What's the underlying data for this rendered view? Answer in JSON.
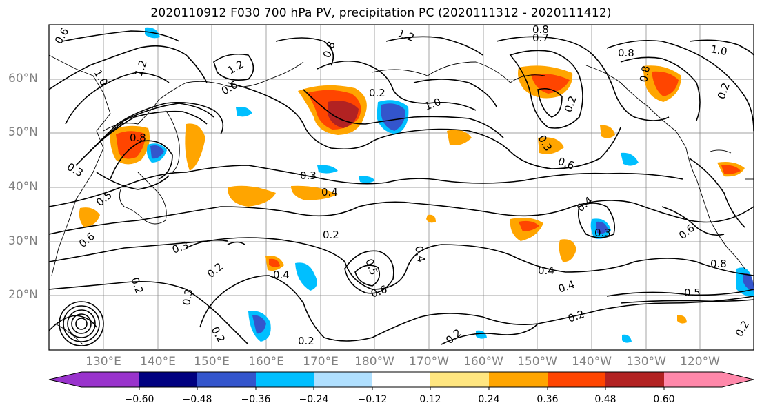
{
  "title": "2020110912 F030 700 hPa PV, precipitation PC (2020111312 - 2020111412)",
  "map": {
    "latitude_labels": [
      "60°N",
      "50°N",
      "40°N",
      "30°N",
      "20°N"
    ],
    "longitude_labels": [
      "130°E",
      "140°E",
      "150°E",
      "160°E",
      "170°E",
      "180°W",
      "170°W",
      "160°W",
      "150°W",
      "140°W",
      "130°W",
      "120°W"
    ],
    "contour_labels": [
      "0.6",
      "1.0",
      "1.2",
      "0.3",
      "0.4",
      "0.5",
      "0.2",
      "0.8",
      "0.7"
    ]
  },
  "colorbar": {
    "tick_labels": [
      "−0.60",
      "−0.48",
      "−0.36",
      "−0.24",
      "−0.12",
      "0.12",
      "0.24",
      "0.36",
      "0.48",
      "0.60"
    ],
    "colors": [
      "#9933cc",
      "#000080",
      "#3355cc",
      "#00bfff",
      "#b0e0ff",
      "#ffffff",
      "#ffe680",
      "#ffa500",
      "#ff4500",
      "#b22222",
      "#ff88aa"
    ]
  },
  "colors": {
    "positive_strong": "#b22222",
    "positive_mid": "#ff4500",
    "positive_weak": "#ffa500",
    "negative_weak": "#00bfff",
    "negative_mid": "#3355cc",
    "contour": "#000000",
    "grid": "#808080",
    "label_gray": "#808080"
  }
}
